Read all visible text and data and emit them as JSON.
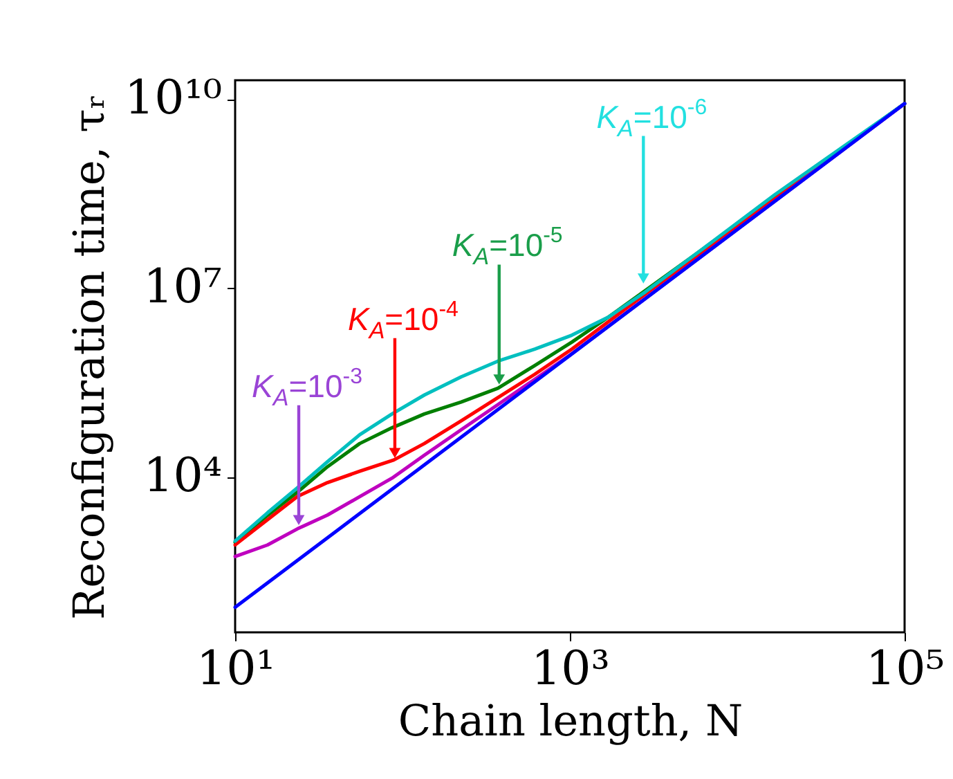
{
  "chart_data": {
    "type": "line",
    "xlabel": "Chain length, N",
    "ylabel": "Reconfiguration time, τᵣ",
    "log": "xy",
    "grid": false,
    "legend": false,
    "marker": "none",
    "line_style": "solid",
    "xlim": [
      10,
      100000
    ],
    "ylim": [
      34,
      20000000000
    ],
    "xticks": [
      {
        "value": 10,
        "label": "10¹"
      },
      {
        "value": 1000,
        "label": "10³"
      },
      {
        "value": 100000,
        "label": "10⁵"
      }
    ],
    "yticks": [
      {
        "value": 10000,
        "label": "10⁴"
      },
      {
        "value": 10000000,
        "label": "10⁷"
      },
      {
        "value": 10000000000,
        "label": "10¹⁰"
      }
    ],
    "series": [
      {
        "color": "#007f00",
        "x": [
          10,
          15.6,
          23.6,
          35.6,
          55.5,
          86.5,
          135,
          224,
          372,
          617,
          1026,
          1702,
          100000
        ],
        "values": [
          912,
          2450,
          5750,
          14500,
          33900,
          60300,
          100000,
          155000,
          257000,
          589000,
          1380000,
          3470000,
          8500000000
        ]
      },
      {
        "color": "#ff0000",
        "x": [
          10,
          15.6,
          23.6,
          35.6,
          55.5,
          88.7,
          135,
          224,
          372,
          617,
          1026,
          2495,
          100000
        ],
        "values": [
          832,
          2090,
          4900,
          8130,
          12300,
          18600,
          33900,
          77600,
          182000,
          427000,
          1070000,
          6300000,
          8500000000
        ]
      },
      {
        "color": "#bf00bf",
        "x": [
          10,
          15.6,
          23.6,
          35.6,
          55.5,
          86.5,
          135,
          224,
          372,
          1000,
          100000
        ],
        "values": [
          545,
          830,
          1500,
          2480,
          4860,
          9550,
          22100,
          56000,
          141000,
          860000,
          8500000000
        ]
      },
      {
        "color": "#00bfbf",
        "x": [
          10,
          15.6,
          23.6,
          35.6,
          55.5,
          86.5,
          135,
          224,
          372,
          617,
          1026,
          1702,
          2831,
          4699,
          8870,
          16700,
          100000
        ],
        "values": [
          955,
          2690,
          6760,
          17400,
          46800,
          100000,
          200000,
          389000,
          692000,
          1070000,
          1780000,
          3470000,
          8710000,
          24000000,
          85100000,
          302000000,
          8500000000
        ]
      },
      {
        "color": "#0000ff",
        "x": [
          10,
          100000
        ],
        "values": [
          85,
          8500000000
        ]
      }
    ],
    "annotations": [
      {
        "text": "K$_{A}$=10$^{-6}$",
        "x": 2750,
        "y": 11000000
      },
      {
        "text": "K$_{A}$=10$^{-5}$",
        "x": 378,
        "y": 275000
      },
      {
        "text": "K$_{A}$=10$^{-4}$",
        "x": 90,
        "y": 18600
      },
      {
        "text": "K$_{A}$=10$^{-3}$",
        "x": 24,
        "y": 1600
      }
    ]
  }
}
